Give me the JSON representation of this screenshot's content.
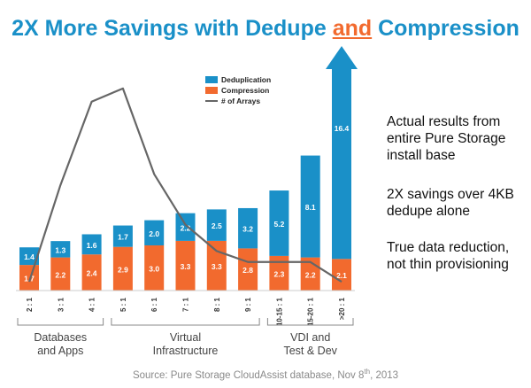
{
  "title": {
    "before": "2X More Savings with Dedupe ",
    "accent": "and",
    "after": " Compression"
  },
  "colors": {
    "title": "#1a90c8",
    "accent": "#f26a2e",
    "dedupe": "#1a90c8",
    "compress": "#f26a2e",
    "line": "#666666"
  },
  "side_text": [
    "Actual results from entire Pure Storage install base",
    "2X savings over 4KB dedupe alone",
    "True data reduction, not thin provisioning"
  ],
  "source": {
    "before": "Source: Pure Storage CloudAssist database, Nov 8",
    "sup": "th",
    "after": ", 2013"
  },
  "chart_data": {
    "type": "bar",
    "stacked": true,
    "categories": [
      "2 : 1",
      "3 : 1",
      "4 : 1",
      "5 : 1",
      "6 : 1",
      "7 : 1",
      "8 : 1",
      "9 : 1",
      "10-15 : 1",
      "15-20 : 1",
      ">20 : 1"
    ],
    "series": [
      {
        "name": "Compression",
        "values": [
          1.7,
          2.2,
          2.4,
          2.9,
          3.0,
          3.3,
          3.3,
          2.8,
          2.3,
          2.2,
          2.1
        ]
      },
      {
        "name": "Deduplication",
        "values": [
          1.4,
          1.3,
          1.6,
          1.7,
          2.0,
          2.2,
          2.5,
          3.2,
          5.2,
          8.1,
          16.4
        ]
      }
    ],
    "line_series": {
      "name": "# of Arrays",
      "relative_values": [
        0.04,
        0.48,
        0.86,
        0.92,
        0.53,
        0.3,
        0.18,
        0.13,
        0.13,
        0.13,
        0.04
      ]
    },
    "legend": [
      "Deduplication",
      "Compression",
      "# of Arrays"
    ],
    "legend_position": "top-center",
    "last_bar_arrow": true,
    "groups": [
      {
        "label_lines": [
          "Databases",
          "and Apps"
        ],
        "start": 0,
        "end": 2
      },
      {
        "label_lines": [
          "Virtual",
          "Infrastructure"
        ],
        "start": 3,
        "end": 7
      },
      {
        "label_lines": [
          "VDI and",
          "Test & Dev"
        ],
        "start": 8,
        "end": 10
      }
    ]
  }
}
